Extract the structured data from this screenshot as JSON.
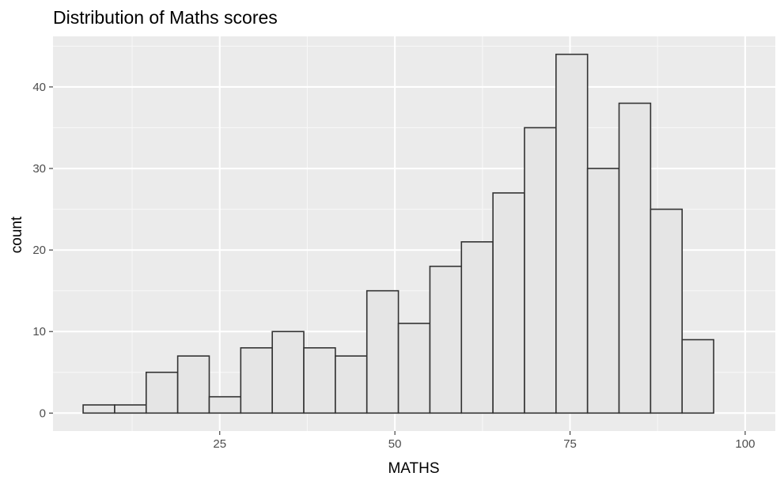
{
  "chart_data": {
    "type": "bar",
    "title": "Distribution of Maths scores",
    "xlabel": "MATHS",
    "ylabel": "count",
    "bin_start": 5.5,
    "bin_width": 4.5,
    "values": [
      1,
      1,
      5,
      7,
      2,
      8,
      10,
      8,
      7,
      15,
      11,
      18,
      21,
      27,
      35,
      44,
      30,
      38,
      25,
      9
    ],
    "xlim": [
      1.2,
      104.3
    ],
    "ylim": [
      -2.2,
      46.2
    ],
    "xticks": [
      25,
      50,
      75,
      100
    ],
    "xtick_labels": [
      "25",
      "50",
      "75",
      "100"
    ],
    "yticks": [
      0,
      10,
      20,
      30,
      40
    ],
    "ytick_labels": [
      "0",
      "10",
      "20",
      "30",
      "40"
    ],
    "grid": true,
    "colors": {
      "panel_background": "#ebebeb",
      "grid_major": "#ffffff",
      "grid_minor": "#f7f7f7",
      "bar_fill": "#e5e5e5",
      "bar_outline": "#333333",
      "tick_mark": "#333333",
      "tick_label": "#4d4d4d"
    }
  }
}
